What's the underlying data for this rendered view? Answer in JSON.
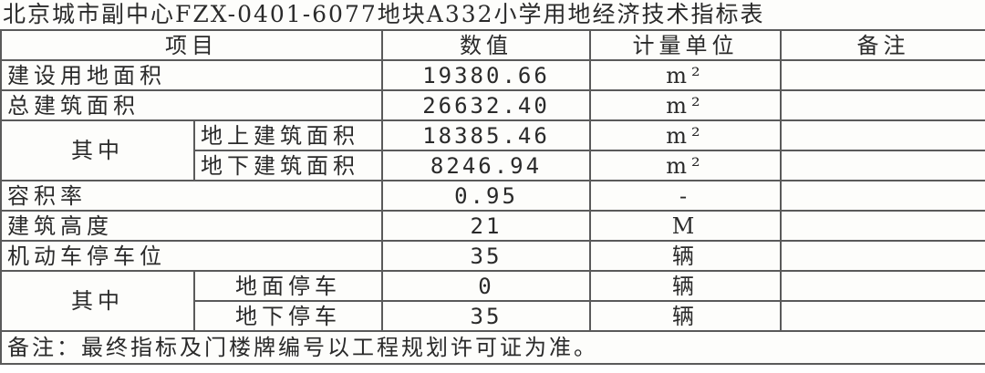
{
  "title": "北京城市副中心FZX-0401-6077地块A332小学用地经济技术指标表",
  "headers": {
    "item": "项目",
    "value": "数值",
    "unit": "计量单位",
    "note": "备注"
  },
  "rows": [
    {
      "item": "建设用地面积",
      "value": "19380.66",
      "unit": "m²",
      "note": ""
    },
    {
      "item": "总建筑面积",
      "value": "26632.40",
      "unit": "m²",
      "note": ""
    },
    {
      "group": "其中",
      "item": "地上建筑面积",
      "value": "18385.46",
      "unit": "m²",
      "note": ""
    },
    {
      "item": "地下建筑面积",
      "value": "8246.94",
      "unit": "m²",
      "note": ""
    },
    {
      "item": "容积率",
      "value": "0.95",
      "unit": "-",
      "note": ""
    },
    {
      "item": "建筑高度",
      "value": "21",
      "unit": "M",
      "note": ""
    },
    {
      "item": "机动车停车位",
      "value": "35",
      "unit": "辆",
      "note": ""
    },
    {
      "group": "其中",
      "item": "地面停车",
      "value": "0",
      "unit": "辆",
      "note": ""
    },
    {
      "item": "地下停车",
      "value": "35",
      "unit": "辆",
      "note": ""
    }
  ],
  "footnote": "备注：最终指标及门楼牌编号以工程规划许可证为准。"
}
